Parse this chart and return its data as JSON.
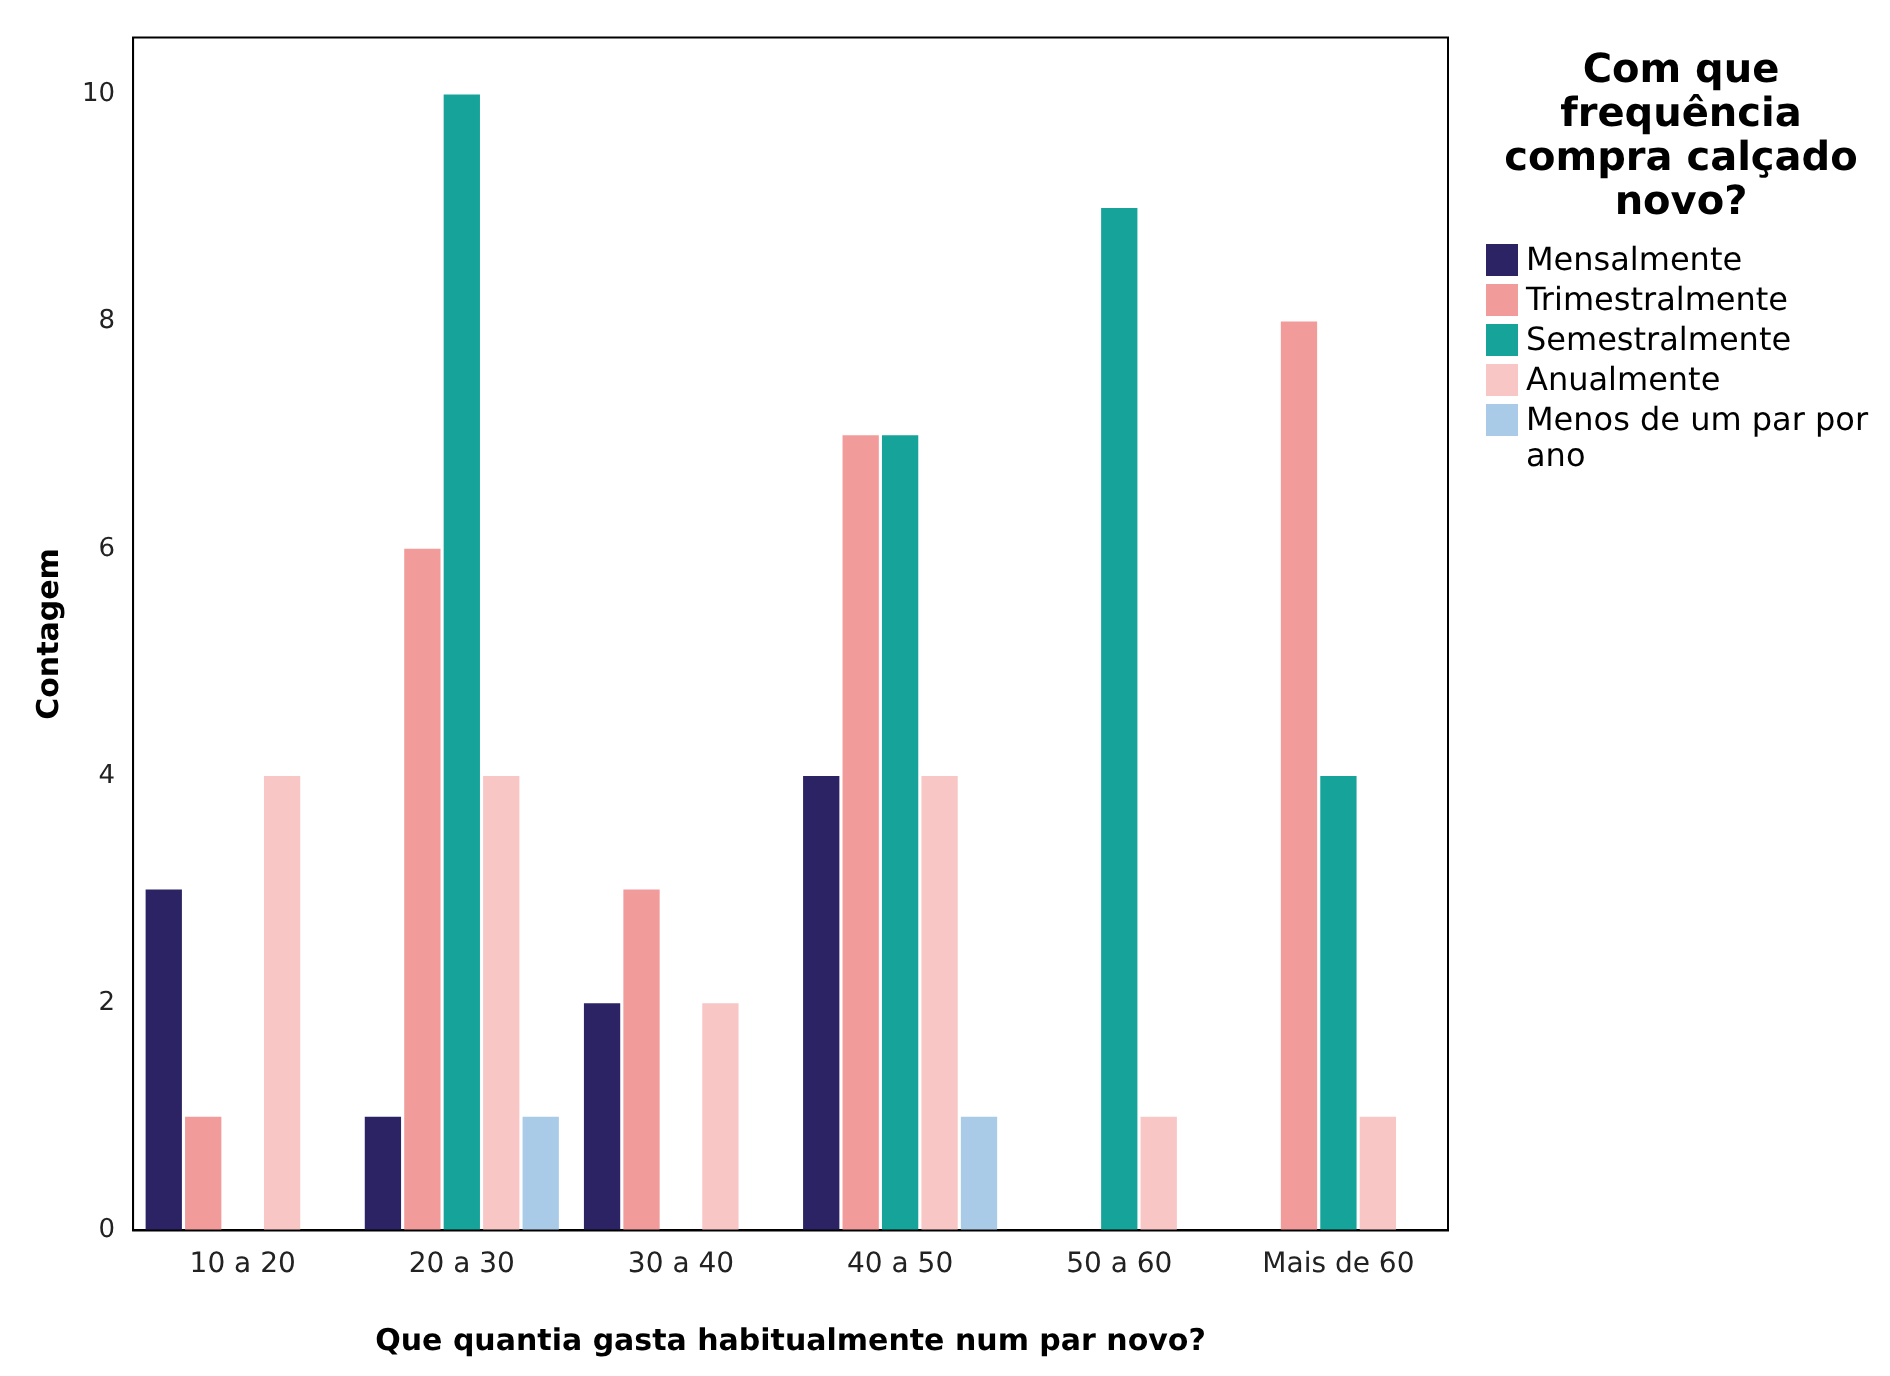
{
  "chart_data": {
    "type": "bar",
    "xlabel": "Que quantia gasta habitualmente num par novo?",
    "ylabel": "Contagem",
    "legend_title": "Com que frequência compra calçado novo?",
    "categories": [
      "10 a 20",
      "20 a 30",
      "30 a 40",
      "40 a 50",
      "50 a 60",
      "Mais de 60"
    ],
    "series": [
      {
        "name": "Mensalmente",
        "color": "#2b2363",
        "values": [
          3,
          1,
          2,
          4,
          null,
          null
        ]
      },
      {
        "name": "Trimestralmente",
        "color": "#f29b9b",
        "values": [
          1,
          6,
          3,
          7,
          null,
          8
        ]
      },
      {
        "name": "Semestralmente",
        "color": "#15a39a",
        "values": [
          null,
          10,
          null,
          7,
          9,
          4
        ]
      },
      {
        "name": "Anualmente",
        "color": "#f9c6c6",
        "values": [
          4,
          4,
          2,
          4,
          1,
          1
        ]
      },
      {
        "name": "Menos de um par por ano",
        "color": "#a9cbe8",
        "values": [
          null,
          1,
          null,
          1,
          null,
          null
        ]
      }
    ],
    "ylim": [
      0,
      10.5
    ],
    "yticks": [
      0,
      2,
      4,
      6,
      8,
      10
    ],
    "grid": false,
    "legend": "right"
  }
}
